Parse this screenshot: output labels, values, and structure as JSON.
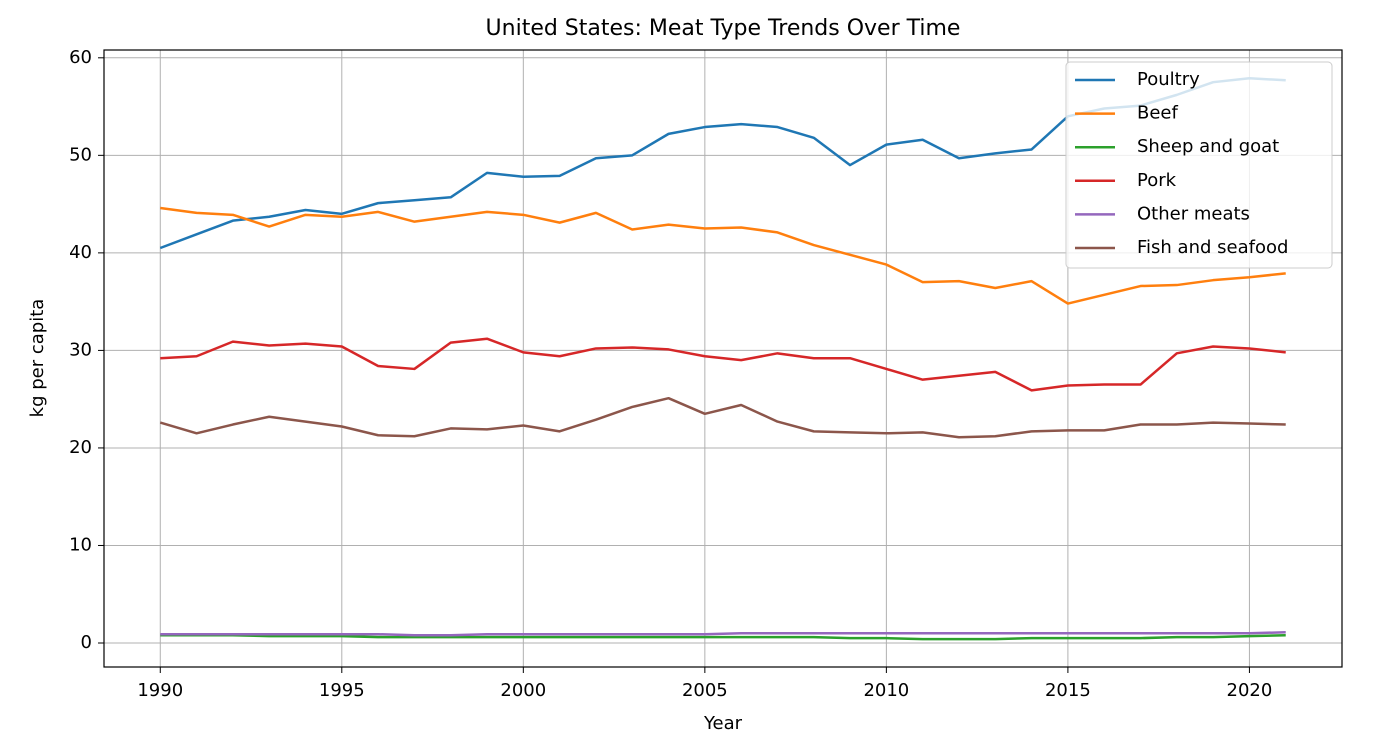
{
  "chart_data": {
    "type": "line",
    "title": "United States: Meat Type Trends Over Time",
    "x_label": "Year",
    "y_label": "kg per capita",
    "x": [
      1990,
      1991,
      1992,
      1993,
      1994,
      1995,
      1996,
      1997,
      1998,
      1999,
      2000,
      2001,
      2002,
      2003,
      2004,
      2005,
      2006,
      2007,
      2008,
      2009,
      2010,
      2011,
      2012,
      2013,
      2014,
      2015,
      2016,
      2017,
      2018,
      2019,
      2020,
      2021
    ],
    "xlim": [
      1988.45,
      2022.55
    ],
    "xticks": [
      1990,
      1995,
      2000,
      2005,
      2010,
      2015,
      2020
    ],
    "ylim": [
      -2.46,
      60.8
    ],
    "yticks": [
      0,
      10,
      20,
      30,
      40,
      50,
      60
    ],
    "grid": true,
    "legend": "upper right",
    "series": [
      {
        "name": "Poultry",
        "color": "#1f77b4",
        "values": [
          40.5,
          41.9,
          43.3,
          43.7,
          44.4,
          44.0,
          45.1,
          45.4,
          45.7,
          48.2,
          47.8,
          47.9,
          49.7,
          50.0,
          52.2,
          52.9,
          53.2,
          52.9,
          51.8,
          49.0,
          51.1,
          51.6,
          49.7,
          50.2,
          50.6,
          54.0,
          54.8,
          55.1,
          56.2,
          57.5,
          57.9,
          57.7
        ]
      },
      {
        "name": "Beef",
        "color": "#ff7f0e",
        "values": [
          44.6,
          44.1,
          43.9,
          42.7,
          43.9,
          43.7,
          44.2,
          43.2,
          43.7,
          44.2,
          43.9,
          43.1,
          44.1,
          42.4,
          42.9,
          42.5,
          42.6,
          42.1,
          40.8,
          39.8,
          38.8,
          37.0,
          37.1,
          36.4,
          37.1,
          34.8,
          35.7,
          36.6,
          36.7,
          37.2,
          37.5,
          37.9
        ]
      },
      {
        "name": "Sheep and goat",
        "color": "#2ca02c",
        "values": [
          0.8,
          0.8,
          0.8,
          0.7,
          0.7,
          0.7,
          0.6,
          0.6,
          0.6,
          0.6,
          0.6,
          0.6,
          0.6,
          0.6,
          0.6,
          0.6,
          0.6,
          0.6,
          0.6,
          0.5,
          0.5,
          0.4,
          0.4,
          0.4,
          0.5,
          0.5,
          0.5,
          0.5,
          0.6,
          0.6,
          0.7,
          0.8
        ]
      },
      {
        "name": "Pork",
        "color": "#d62728",
        "values": [
          29.2,
          29.4,
          30.9,
          30.5,
          30.7,
          30.4,
          28.4,
          28.1,
          30.8,
          31.2,
          29.8,
          29.4,
          30.2,
          30.3,
          30.1,
          29.4,
          29.0,
          29.7,
          29.2,
          29.2,
          28.1,
          27.0,
          27.4,
          27.8,
          25.9,
          26.4,
          26.5,
          26.5,
          29.7,
          30.4,
          30.2,
          29.8
        ]
      },
      {
        "name": "Other meats",
        "color": "#9467bd",
        "values": [
          0.9,
          0.9,
          0.9,
          0.9,
          0.9,
          0.9,
          0.9,
          0.8,
          0.8,
          0.9,
          0.9,
          0.9,
          0.9,
          0.9,
          0.9,
          0.9,
          1.0,
          1.0,
          1.0,
          1.0,
          1.0,
          1.0,
          1.0,
          1.0,
          1.0,
          1.0,
          1.0,
          1.0,
          1.0,
          1.0,
          1.0,
          1.1
        ]
      },
      {
        "name": "Fish and seafood",
        "color": "#8c564b",
        "values": [
          22.6,
          21.5,
          22.4,
          23.2,
          22.7,
          22.2,
          21.3,
          21.2,
          22.0,
          21.9,
          22.3,
          21.7,
          22.9,
          24.2,
          25.1,
          23.5,
          24.4,
          22.7,
          21.7,
          21.6,
          21.5,
          21.6,
          21.1,
          21.2,
          21.7,
          21.8,
          21.8,
          22.4,
          22.4,
          22.6,
          22.5,
          22.4
        ]
      }
    ]
  }
}
